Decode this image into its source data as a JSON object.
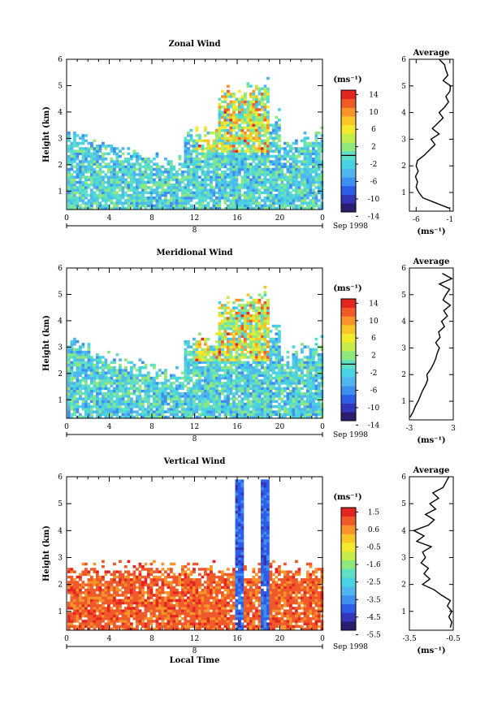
{
  "chart_data": [
    {
      "type": "heatmap",
      "title": "Zonal Wind",
      "xlabel": "",
      "ylabel": "Height (km)",
      "x_ticks": [
        "0",
        "4",
        "8",
        "12",
        "16",
        "20",
        "0"
      ],
      "y_ticks": [
        "1",
        "2",
        "3",
        "4",
        "5",
        "6"
      ],
      "xlim": [
        0,
        24
      ],
      "ylim": [
        0.3,
        6
      ],
      "date_label": "Sep 1998",
      "day_label": "8",
      "colorbar": {
        "unit": "(ms⁻¹)",
        "ticks": [
          "14",
          "10",
          "6",
          "2",
          "-2",
          "-6",
          "-10",
          "-14"
        ],
        "range": [
          -16,
          16
        ]
      },
      "profile": {
        "title": "Average",
        "xlabel": "(ms⁻¹)",
        "x_ticks": [
          "-6",
          "-1"
        ],
        "xlim": [
          -7,
          -0.5
        ],
        "heights": [
          0.4,
          0.6,
          0.8,
          1.0,
          1.2,
          1.4,
          1.6,
          1.8,
          2.0,
          2.2,
          2.4,
          2.6,
          2.8,
          3.0,
          3.2,
          3.4,
          3.6,
          3.8,
          4.0,
          4.2,
          4.4,
          4.6,
          4.8,
          5.0,
          5.2,
          5.4,
          5.6,
          5.8,
          6.0
        ],
        "values": [
          -1.0,
          -3.0,
          -5.0,
          -5.6,
          -6.0,
          -5.8,
          -6.1,
          -5.7,
          -6.0,
          -5.8,
          -4.8,
          -4.0,
          -3.2,
          -3.8,
          -2.6,
          -3.6,
          -2.8,
          -2.0,
          -2.6,
          -1.8,
          -1.2,
          -1.6,
          -1.0,
          -0.9,
          -2.0,
          -1.3,
          -1.6,
          -1.8,
          -2.6
        ]
      }
    },
    {
      "type": "heatmap",
      "title": "Meridional Wind",
      "xlabel": "",
      "ylabel": "Height (km)",
      "x_ticks": [
        "0",
        "4",
        "8",
        "12",
        "16",
        "20",
        "0"
      ],
      "y_ticks": [
        "1",
        "2",
        "3",
        "4",
        "5",
        "6"
      ],
      "xlim": [
        0,
        24
      ],
      "ylim": [
        0.3,
        6
      ],
      "date_label": "Sep 1998",
      "day_label": "8",
      "colorbar": {
        "unit": "(ms⁻¹)",
        "ticks": [
          "14",
          "10",
          "6",
          "2",
          "-2",
          "-6",
          "-10",
          "-14"
        ],
        "range": [
          -16,
          16
        ]
      },
      "profile": {
        "title": "Average",
        "xlabel": "(ms⁻¹)",
        "x_ticks": [
          "-3",
          "3"
        ],
        "xlim": [
          -3,
          3
        ],
        "heights": [
          0.4,
          0.6,
          0.8,
          1.0,
          1.2,
          1.4,
          1.6,
          1.8,
          2.0,
          2.2,
          2.4,
          2.6,
          2.8,
          3.0,
          3.2,
          3.4,
          3.6,
          3.8,
          4.0,
          4.2,
          4.4,
          4.6,
          4.8,
          5.0,
          5.2,
          5.4,
          5.6,
          5.8
        ],
        "values": [
          -2.9,
          -2.5,
          -2.2,
          -1.8,
          -1.5,
          -1.2,
          -0.8,
          -0.5,
          -0.6,
          -0.1,
          0.3,
          0.6,
          0.8,
          1.1,
          0.6,
          1.2,
          1.0,
          1.8,
          1.4,
          2.2,
          1.7,
          2.6,
          1.6,
          2.0,
          2.5,
          1.1,
          2.8,
          1.5
        ]
      }
    },
    {
      "type": "heatmap",
      "title": "Vertical Wind",
      "xlabel": "Local Time",
      "ylabel": "Height (km)",
      "x_ticks": [
        "0",
        "4",
        "8",
        "12",
        "16",
        "20",
        "0"
      ],
      "y_ticks": [
        "1",
        "2",
        "3",
        "4",
        "5",
        "6"
      ],
      "xlim": [
        0,
        24
      ],
      "ylim": [
        0.3,
        6
      ],
      "date_label": "Sep 1998",
      "day_label": "8",
      "colorbar": {
        "unit": "(ms⁻¹)",
        "ticks": [
          "1.5",
          "0.6",
          "-0.5",
          "-1.6",
          "-2.5",
          "-3.5",
          "-4.5",
          "-5.5"
        ],
        "range": [
          -6,
          2
        ]
      },
      "profile": {
        "title": "Average",
        "xlabel": "(ms⁻¹)",
        "x_ticks": [
          "-3.5",
          "-0.5"
        ],
        "xlim": [
          -3.5,
          -0.5
        ],
        "heights": [
          0.4,
          0.6,
          0.8,
          1.0,
          1.2,
          1.4,
          1.6,
          1.8,
          2.0,
          2.2,
          2.4,
          2.6,
          2.8,
          3.0,
          3.2,
          3.4,
          3.6,
          3.8,
          4.0,
          4.2,
          4.4,
          4.6,
          4.8,
          5.0,
          5.2,
          5.4,
          5.6,
          5.8,
          6.0
        ],
        "values": [
          -0.7,
          -0.6,
          -0.8,
          -0.6,
          -0.9,
          -0.7,
          -1.3,
          -1.8,
          -2.6,
          -2.1,
          -2.5,
          -2.2,
          -2.7,
          -2.4,
          -2.6,
          -2.0,
          -3.0,
          -2.5,
          -3.2,
          -2.2,
          -1.8,
          -2.4,
          -1.7,
          -2.1,
          -1.5,
          -1.9,
          -1.2,
          -1.0,
          -0.8
        ]
      }
    }
  ]
}
